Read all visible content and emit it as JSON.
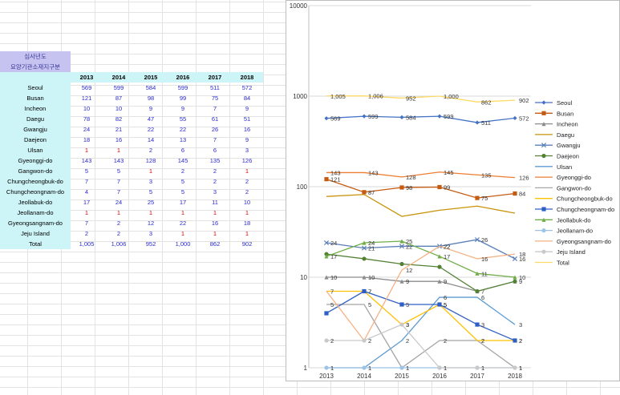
{
  "header": {
    "line1": "심사년도",
    "line2": "요양기관소재지구분"
  },
  "years": [
    "2013",
    "2014",
    "2015",
    "2016",
    "2017",
    "2018"
  ],
  "rows": [
    {
      "name": "Seoul",
      "values": [
        "569",
        "599",
        "584",
        "599",
        "511",
        "572"
      ]
    },
    {
      "name": "Busan",
      "values": [
        "121",
        "87",
        "98",
        "99",
        "75",
        "84"
      ]
    },
    {
      "name": "Incheon",
      "values": [
        "10",
        "10",
        "9",
        "9",
        "7",
        "9"
      ]
    },
    {
      "name": "Daegu",
      "values": [
        "78",
        "82",
        "47",
        "55",
        "61",
        "51"
      ]
    },
    {
      "name": "Gwangju",
      "values": [
        "24",
        "21",
        "22",
        "22",
        "26",
        "16"
      ]
    },
    {
      "name": "Daejeon",
      "values": [
        "18",
        "16",
        "14",
        "13",
        "7",
        "9"
      ]
    },
    {
      "name": "Ulsan",
      "values": [
        "1",
        "1",
        "2",
        "6",
        "6",
        "3"
      ]
    },
    {
      "name": "Gyeonggi-do",
      "values": [
        "143",
        "143",
        "128",
        "145",
        "135",
        "126"
      ]
    },
    {
      "name": "Gangwon-do",
      "values": [
        "5",
        "5",
        "1",
        "2",
        "2",
        "1"
      ]
    },
    {
      "name": "Chungcheongbuk-do",
      "values": [
        "7",
        "7",
        "3",
        "5",
        "2",
        "2"
      ]
    },
    {
      "name": "Chungcheongnam-do",
      "values": [
        "4",
        "7",
        "5",
        "5",
        "3",
        "2"
      ]
    },
    {
      "name": "Jeollabuk-do",
      "values": [
        "17",
        "24",
        "25",
        "17",
        "11",
        "10"
      ]
    },
    {
      "name": "Jeollanam-do",
      "values": [
        "1",
        "1",
        "1",
        "1",
        "1",
        "1"
      ]
    },
    {
      "name": "Gyeongsangnam-do",
      "values": [
        "7",
        "2",
        "12",
        "22",
        "16",
        "18"
      ]
    },
    {
      "name": "Jeju Island",
      "values": [
        "2",
        "2",
        "3",
        "1",
        "1",
        "1"
      ]
    },
    {
      "name": "Total",
      "values": [
        "1,005",
        "1,006",
        "952",
        "1,000",
        "862",
        "902"
      ]
    }
  ],
  "colors": {
    "blue_number": "#2a2acc",
    "red_number": "#e00000",
    "header_bg": "#c7c3f0",
    "cell_bg": "#cdf4f7"
  },
  "chart_data": {
    "type": "line",
    "log_scale": true,
    "ylim": [
      1,
      10000
    ],
    "y_ticks": [
      "1",
      "10",
      "100",
      "1000",
      "10000"
    ],
    "categories": [
      "2013",
      "2014",
      "2015",
      "2016",
      "2017",
      "2018"
    ],
    "legend_position": "right",
    "series": [
      {
        "name": "Seoul",
        "color": "#4472c4",
        "marker": "diamond",
        "values": [
          569,
          599,
          584,
          599,
          511,
          572
        ],
        "labels": [
          "569",
          "599",
          "584",
          "599",
          "511",
          "572"
        ]
      },
      {
        "name": "Busan",
        "color": "#c55a11",
        "marker": "square",
        "values": [
          121,
          87,
          98,
          99,
          75,
          84
        ],
        "labels": [
          "121",
          "87",
          "98",
          "99",
          "75",
          "84"
        ]
      },
      {
        "name": "Incheon",
        "color": "#8c8c8c",
        "marker": "triangle",
        "values": [
          10,
          10,
          9,
          9,
          7,
          9
        ],
        "labels": [
          "10",
          "10",
          "9",
          "9",
          "7",
          "9"
        ]
      },
      {
        "name": "Daegu",
        "color": "#c9930c",
        "marker": "none",
        "values": [
          78,
          82,
          47,
          55,
          61,
          51
        ],
        "labels": []
      },
      {
        "name": "Gwangju",
        "color": "#5b7fb8",
        "marker": "x",
        "values": [
          24,
          21,
          22,
          22,
          26,
          16
        ],
        "labels": [
          "24",
          "21",
          "22",
          "22",
          "26",
          "16"
        ]
      },
      {
        "name": "Daejeon",
        "color": "#548235",
        "marker": "circle",
        "values": [
          18,
          16,
          14,
          13,
          7,
          9
        ],
        "labels": []
      },
      {
        "name": "Ulsan",
        "color": "#5b9bd5",
        "marker": "none",
        "values": [
          1,
          1,
          2,
          6,
          6,
          3
        ],
        "labels": [
          "1",
          "1",
          "2",
          "6",
          "6",
          "3"
        ]
      },
      {
        "name": "Gyeonggi-do",
        "color": "#ed7d31",
        "marker": "none",
        "values": [
          143,
          143,
          128,
          145,
          135,
          126
        ],
        "labels": [
          "143",
          "143",
          "128",
          "145",
          "135",
          "126"
        ]
      },
      {
        "name": "Gangwon-do",
        "color": "#a5a5a5",
        "marker": "none",
        "values": [
          5,
          5,
          1,
          2,
          2,
          1
        ],
        "labels": [
          "5",
          "5",
          "1",
          "2",
          "2",
          "1"
        ]
      },
      {
        "name": "Chungcheongbuk-do",
        "color": "#ffc000",
        "marker": "none",
        "values": [
          7,
          7,
          3,
          5,
          2,
          2
        ],
        "labels": [
          "7",
          "7",
          "3",
          "5",
          "2",
          "2"
        ]
      },
      {
        "name": "Chungcheongnam-do",
        "color": "#2f5fc4",
        "marker": "square",
        "values": [
          4,
          7,
          5,
          5,
          3,
          2
        ],
        "labels": [
          "",
          "7",
          "5",
          "5",
          "3",
          "2"
        ]
      },
      {
        "name": "Jeollabuk-do",
        "color": "#70ad47",
        "marker": "triangle",
        "values": [
          17,
          24,
          25,
          17,
          11,
          10
        ],
        "labels": [
          "17",
          "24",
          "25",
          "17",
          "11",
          "10"
        ]
      },
      {
        "name": "Jeollanam-do",
        "color": "#9dc3e6",
        "marker": "circle",
        "values": [
          1,
          1,
          1,
          1,
          1,
          1
        ],
        "labels": [
          "1",
          "1",
          "1",
          "1",
          "1",
          "1"
        ]
      },
      {
        "name": "Gyeongsangnam-do",
        "color": "#f4b183",
        "marker": "none",
        "values": [
          7,
          2,
          12,
          22,
          16,
          18
        ],
        "labels": [
          "",
          "",
          "12",
          "22",
          "16",
          "18"
        ]
      },
      {
        "name": "Jeju Island",
        "color": "#c9c9c9",
        "marker": "circle",
        "values": [
          2,
          2,
          3,
          1,
          1,
          1
        ],
        "labels": [
          "2",
          "2",
          "3",
          "1",
          "1",
          "1"
        ]
      },
      {
        "name": "Total",
        "color": "#ffd966",
        "marker": "none",
        "values": [
          1005,
          1006,
          952,
          1000,
          862,
          902
        ],
        "labels": [
          "1,005",
          "1,006",
          "952",
          "1,000",
          "862",
          "902"
        ]
      }
    ]
  }
}
